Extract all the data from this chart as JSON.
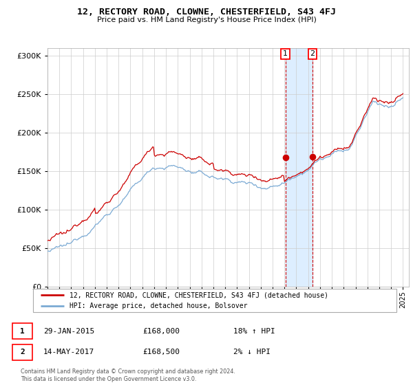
{
  "title": "12, RECTORY ROAD, CLOWNE, CHESTERFIELD, S43 4FJ",
  "subtitle": "Price paid vs. HM Land Registry's House Price Index (HPI)",
  "legend_line1": "12, RECTORY ROAD, CLOWNE, CHESTERFIELD, S43 4FJ (detached house)",
  "legend_line2": "HPI: Average price, detached house, Bolsover",
  "transaction1_date": "29-JAN-2015",
  "transaction1_price": "£168,000",
  "transaction1_hpi": "18% ↑ HPI",
  "transaction2_date": "14-MAY-2017",
  "transaction2_price": "£168,500",
  "transaction2_hpi": "2% ↓ HPI",
  "copyright": "Contains HM Land Registry data © Crown copyright and database right 2024.\nThis data is licensed under the Open Government Licence v3.0.",
  "hpi_color": "#7baad4",
  "price_color": "#cc0000",
  "dot_color": "#cc0000",
  "shade_color": "#ddeeff",
  "grid_color": "#cccccc",
  "transaction1_x": 2015.08,
  "transaction2_x": 2017.37,
  "transaction1_y": 168000,
  "transaction2_y": 168500,
  "ylim": [
    0,
    310000
  ],
  "xlim_start": 1995.0,
  "xlim_end": 2025.5,
  "yticks": [
    0,
    50000,
    100000,
    150000,
    200000,
    250000,
    300000
  ],
  "xticks": [
    1995,
    1996,
    1997,
    1998,
    1999,
    2000,
    2001,
    2002,
    2003,
    2004,
    2005,
    2006,
    2007,
    2008,
    2009,
    2010,
    2011,
    2012,
    2013,
    2014,
    2015,
    2016,
    2017,
    2018,
    2019,
    2020,
    2021,
    2022,
    2023,
    2024,
    2025
  ]
}
